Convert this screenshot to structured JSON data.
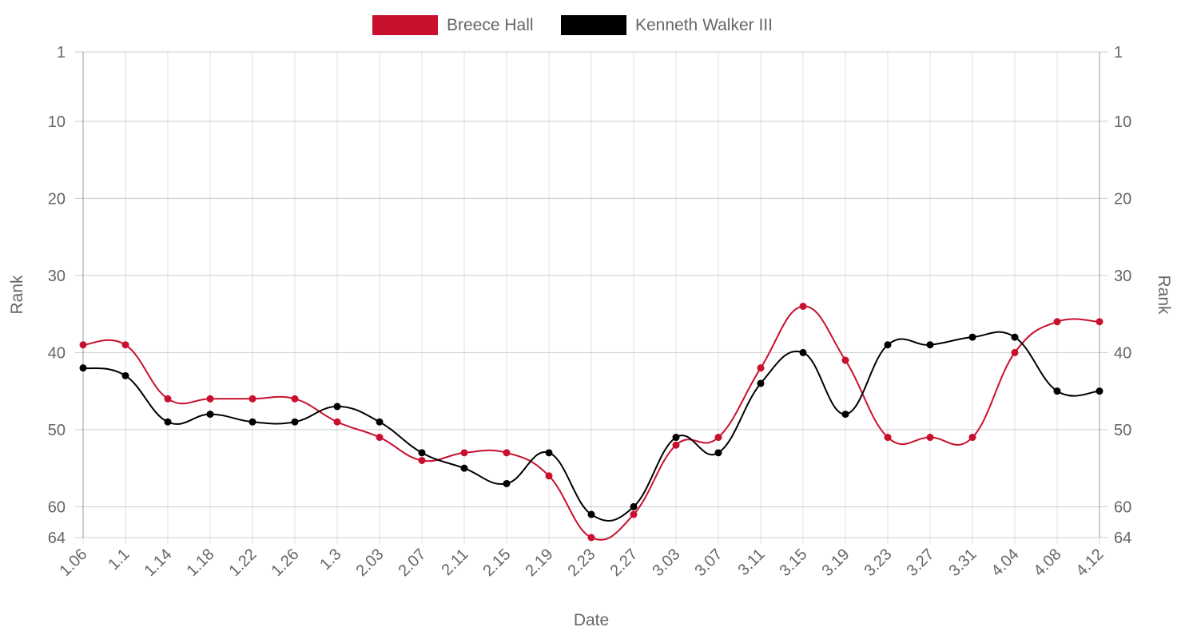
{
  "chart_data": {
    "type": "line",
    "title": "",
    "xlabel": "Date",
    "ylabel": "Rank",
    "y2label": "Rank",
    "y_reversed": true,
    "ylim": [
      1,
      64
    ],
    "yticks": [
      1,
      10,
      20,
      30,
      40,
      50,
      60,
      64
    ],
    "grid": true,
    "legend": "top-center",
    "categories": [
      "1.06",
      "1.1",
      "1.14",
      "1.18",
      "1.22",
      "1.26",
      "1.3",
      "2.03",
      "2.07",
      "2.11",
      "2.15",
      "2.19",
      "2.23",
      "2.27",
      "3.03",
      "3.07",
      "3.11",
      "3.15",
      "3.19",
      "3.23",
      "3.27",
      "3.31",
      "4.04",
      "4.08",
      "4.12"
    ],
    "series": [
      {
        "name": "Breece Hall",
        "color": "#c8102e",
        "values": [
          39,
          39,
          46,
          46,
          46,
          46,
          49,
          51,
          54,
          53,
          53,
          56,
          64,
          61,
          52,
          51,
          42,
          34,
          41,
          51,
          51,
          51,
          40,
          36,
          36
        ]
      },
      {
        "name": "Kenneth Walker III",
        "color": "#000000",
        "values": [
          42,
          43,
          49,
          48,
          49,
          49,
          47,
          49,
          53,
          55,
          57,
          53,
          61,
          60,
          51,
          53,
          44,
          40,
          48,
          39,
          39,
          38,
          38,
          45,
          45
        ]
      }
    ]
  }
}
